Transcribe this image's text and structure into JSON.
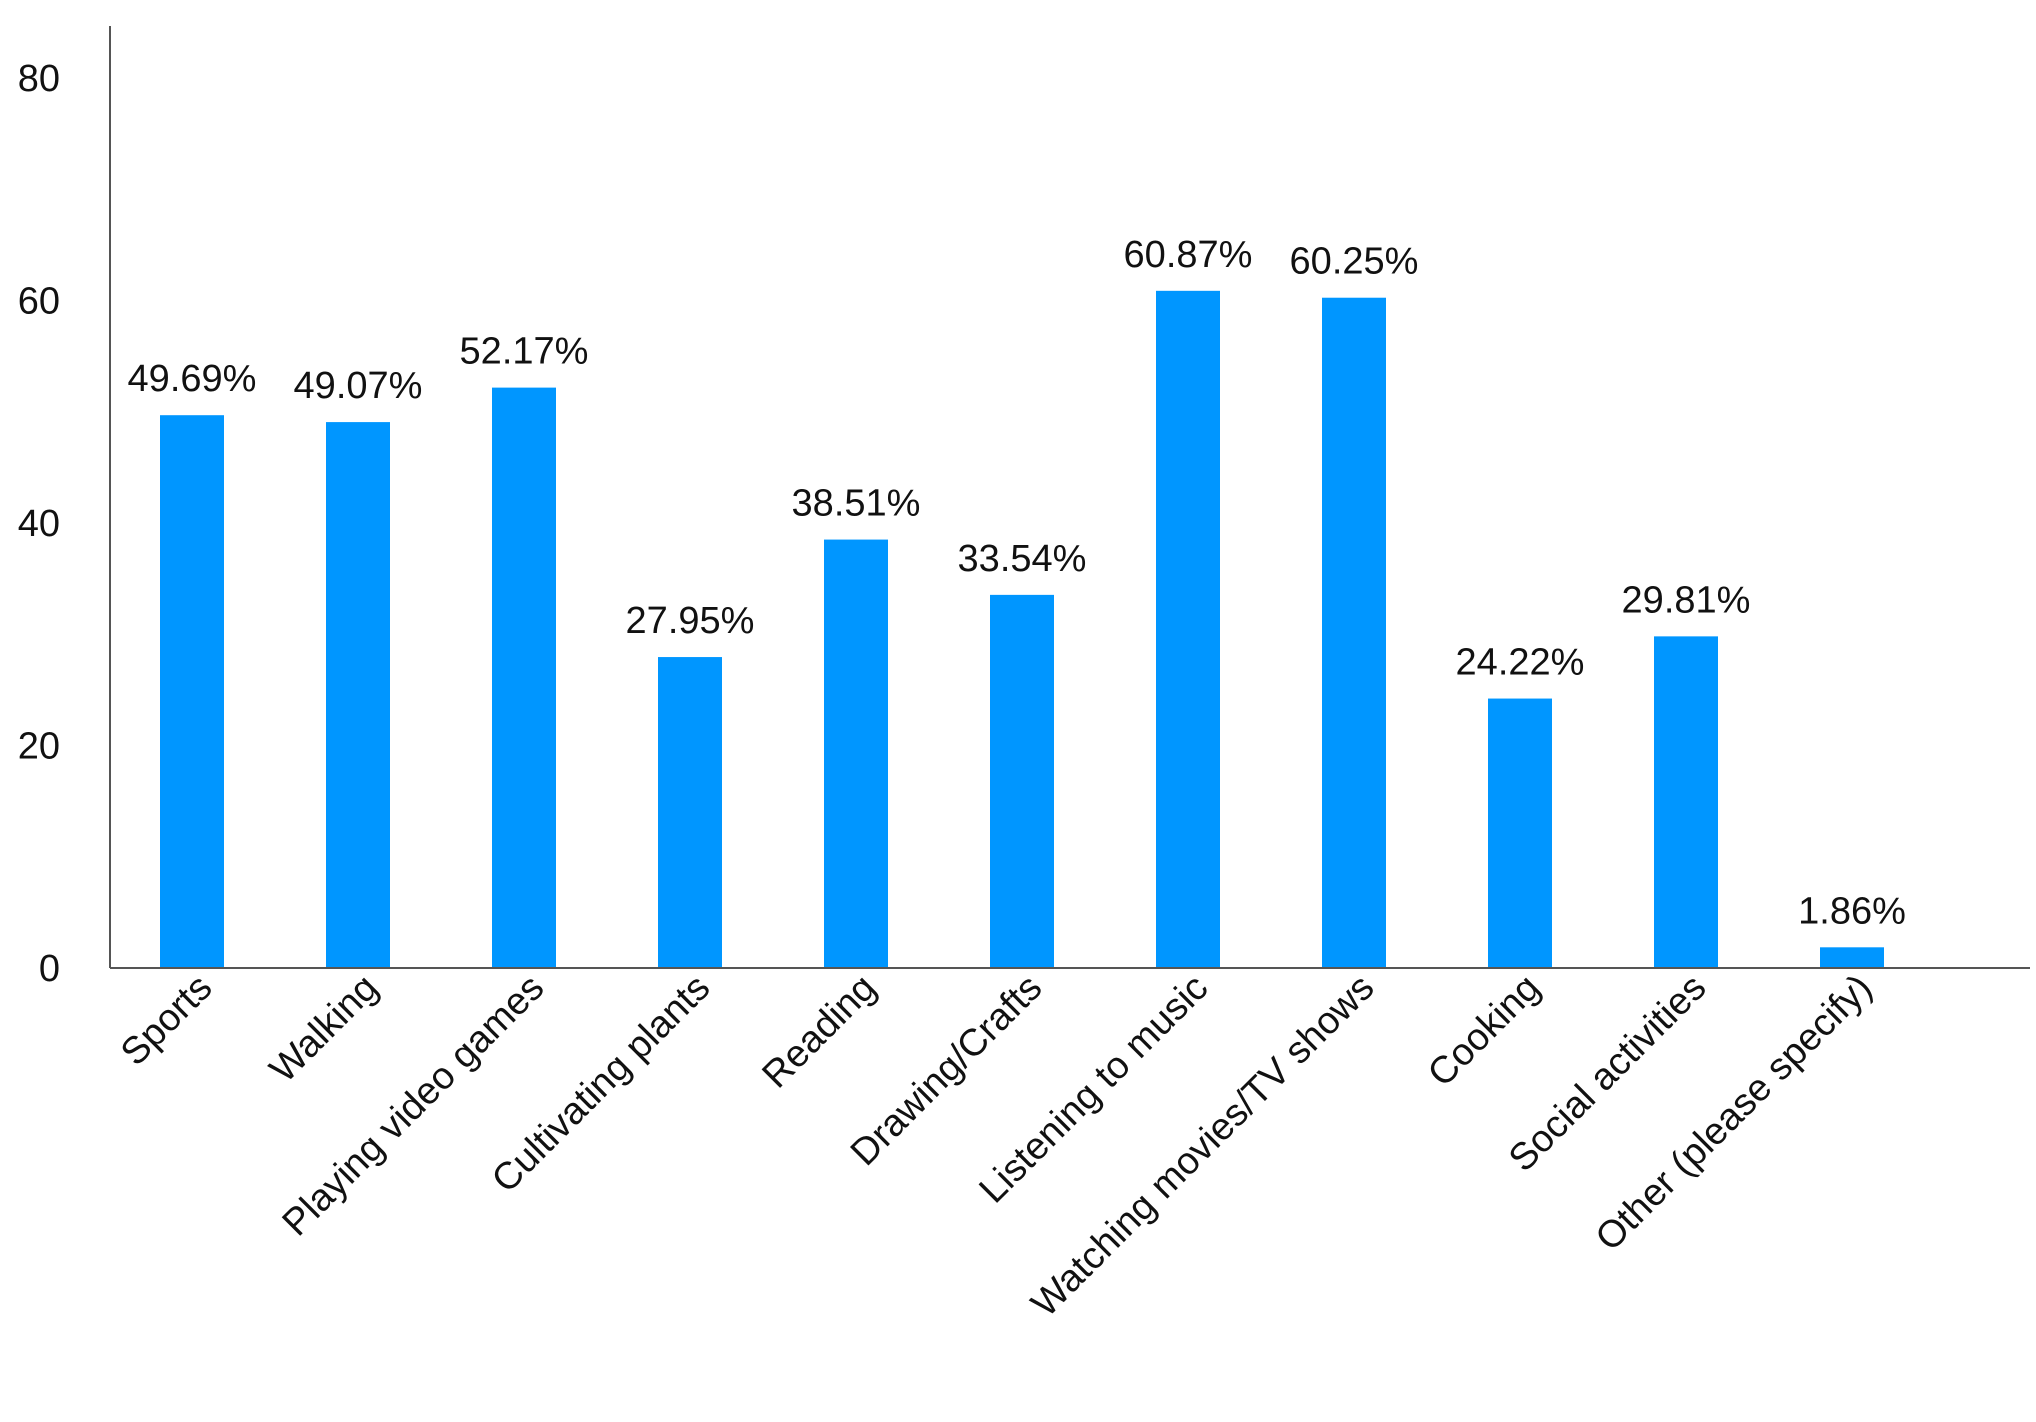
{
  "chart_data": {
    "type": "bar",
    "title": "",
    "xlabel": "",
    "ylabel": "",
    "ylim": [
      0,
      80
    ],
    "yticks": [
      0,
      20,
      40,
      60,
      80
    ],
    "grid": false,
    "bar_color": "#0096FF",
    "categories": [
      "Sports",
      "Walking",
      "Playing video games",
      "Cultivating plants",
      "Reading",
      "Drawing/Crafts",
      "Listening to music",
      "Watching movies/TV shows",
      "Cooking",
      "Social activities",
      "Other (please specify)"
    ],
    "values": [
      49.69,
      49.07,
      52.17,
      27.95,
      38.51,
      33.54,
      60.87,
      60.25,
      24.22,
      29.81,
      1.86
    ],
    "data_labels": [
      "49.69%",
      "49.07%",
      "52.17%",
      "27.95%",
      "38.51%",
      "33.54%",
      "60.87%",
      "60.25%",
      "24.22%",
      "29.81%",
      "1.86%"
    ]
  }
}
